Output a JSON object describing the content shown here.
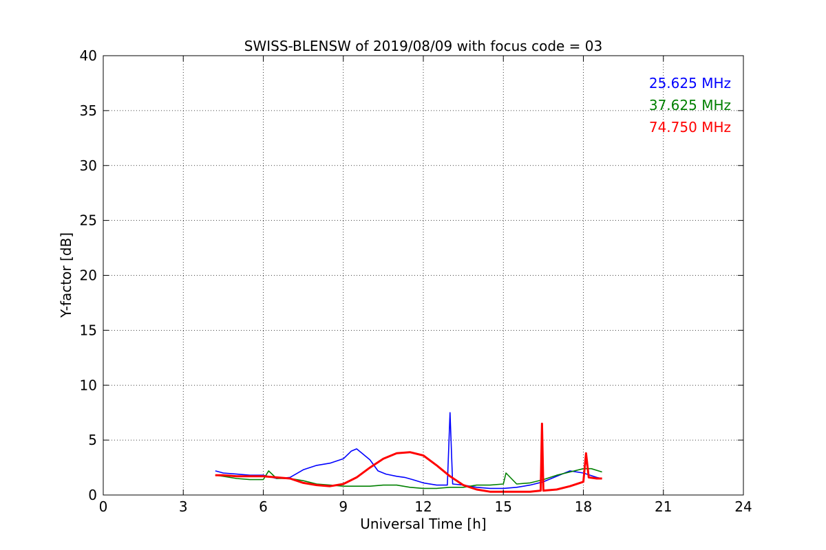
{
  "chart_data": {
    "type": "line",
    "title": "SWISS-BLENSW of 2019/08/09 with focus code = 03",
    "xlabel": "Universal Time [h]",
    "ylabel": "Y-factor [dB]",
    "xlim": [
      0,
      24
    ],
    "ylim": [
      0,
      40
    ],
    "xticks": [
      0,
      3,
      6,
      9,
      12,
      15,
      18,
      21,
      24
    ],
    "yticks": [
      0,
      5,
      10,
      15,
      20,
      25,
      30,
      35,
      40
    ],
    "xtick_labels": [
      "0",
      "3",
      "6",
      "9",
      "12",
      "15",
      "18",
      "21",
      "24"
    ],
    "ytick_labels": [
      "0",
      "5",
      "10",
      "15",
      "20",
      "25",
      "30",
      "35",
      "40"
    ],
    "grid": true,
    "legend_position": "top-right",
    "series": [
      {
        "name": "25.625 MHz",
        "color": "#0000ff",
        "x": [
          4.2,
          4.5,
          5.0,
          5.5,
          6.0,
          6.5,
          7.0,
          7.5,
          8.0,
          8.5,
          9.0,
          9.3,
          9.5,
          9.7,
          10.0,
          10.3,
          10.6,
          11.0,
          11.3,
          11.6,
          12.0,
          12.5,
          12.9,
          13.0,
          13.1,
          13.5,
          14.0,
          14.5,
          15.0,
          15.5,
          16.0,
          16.5,
          17.0,
          17.5,
          18.0,
          18.5,
          18.7
        ],
        "y": [
          2.2,
          2.0,
          1.9,
          1.8,
          1.8,
          1.5,
          1.6,
          2.3,
          2.7,
          2.9,
          3.3,
          4.0,
          4.2,
          3.8,
          3.2,
          2.2,
          1.9,
          1.7,
          1.6,
          1.4,
          1.1,
          0.9,
          0.9,
          7.5,
          1.0,
          0.9,
          0.7,
          0.6,
          0.6,
          0.7,
          0.9,
          1.2,
          1.7,
          2.2,
          2.0,
          1.6,
          1.5
        ]
      },
      {
        "name": "37.625 MHz",
        "color": "#008000",
        "x": [
          4.2,
          4.5,
          5.0,
          5.5,
          6.0,
          6.2,
          6.5,
          7.0,
          7.5,
          8.0,
          8.5,
          9.0,
          9.5,
          10.0,
          10.5,
          11.0,
          11.5,
          12.0,
          12.5,
          13.0,
          13.5,
          14.0,
          14.5,
          15.0,
          15.1,
          15.5,
          16.0,
          16.5,
          17.0,
          17.5,
          18.0,
          18.3,
          18.7
        ],
        "y": [
          1.8,
          1.7,
          1.5,
          1.4,
          1.4,
          2.2,
          1.5,
          1.5,
          1.3,
          1.0,
          0.9,
          0.8,
          0.8,
          0.8,
          0.9,
          0.9,
          0.7,
          0.6,
          0.6,
          0.7,
          0.7,
          0.9,
          0.9,
          1.0,
          2.0,
          1.0,
          1.1,
          1.4,
          1.8,
          2.1,
          2.4,
          2.4,
          2.1
        ]
      },
      {
        "name": "74.750 MHz",
        "color": "#ff0000",
        "x": [
          4.2,
          4.5,
          5.0,
          5.5,
          6.0,
          6.5,
          7.0,
          7.5,
          8.0,
          8.5,
          9.0,
          9.5,
          10.0,
          10.5,
          11.0,
          11.5,
          12.0,
          12.5,
          13.0,
          13.5,
          14.0,
          14.5,
          15.0,
          15.5,
          16.0,
          16.4,
          16.45,
          16.5,
          17.0,
          17.5,
          18.0,
          18.1,
          18.2,
          18.5,
          18.7
        ],
        "y": [
          1.8,
          1.8,
          1.7,
          1.7,
          1.7,
          1.6,
          1.5,
          1.1,
          0.9,
          0.8,
          1.0,
          1.6,
          2.5,
          3.3,
          3.8,
          3.9,
          3.6,
          2.7,
          1.7,
          0.9,
          0.5,
          0.3,
          0.3,
          0.3,
          0.3,
          0.4,
          6.5,
          0.4,
          0.5,
          0.8,
          1.2,
          3.8,
          1.6,
          1.5,
          1.5
        ]
      }
    ]
  }
}
